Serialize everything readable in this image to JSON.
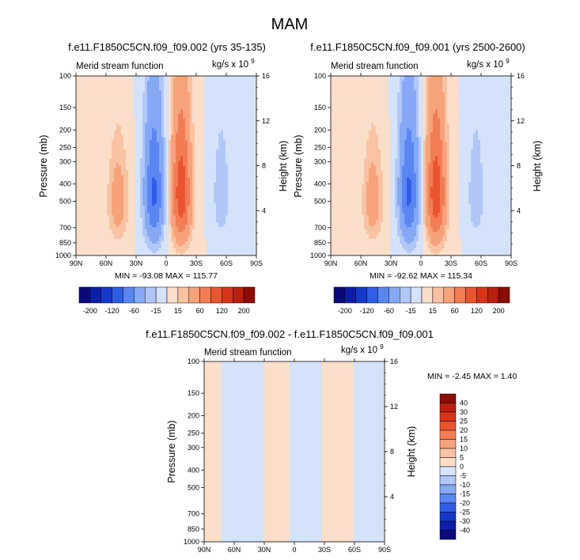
{
  "figure": {
    "title": "MAM"
  },
  "chart_data": [
    {
      "type": "heatmap",
      "title": "f.e11.F1850C5CN.f09_f09.002 (yrs 35-135)",
      "left_label": "Merid stream function",
      "right_label": "kg/s x 10",
      "right_label_exp": "9",
      "ylabel": "Pressure (mb)",
      "y2label": "Height (km)",
      "x_ticks": [
        "90N",
        "60N",
        "30N",
        "0",
        "30S",
        "60S",
        "90S"
      ],
      "y_ticks": [
        "100",
        "150",
        "200",
        "250",
        "300",
        "400",
        "500",
        "700",
        "850",
        "1000"
      ],
      "y2_ticks": [
        "16",
        "12",
        "8",
        "4"
      ],
      "stats": "MIN = -93.08   MAX = 115.77",
      "min": -93.08,
      "max": 115.77,
      "cells": [
        {
          "lat": -15,
          "p": 450,
          "sign": 1,
          "amp": 110,
          "dlat": 10,
          "dp": 380
        },
        {
          "lat": 12,
          "p": 450,
          "sign": -1,
          "amp": 95,
          "dlat": 10,
          "dp": 380
        },
        {
          "lat": 48,
          "p": 500,
          "sign": 1,
          "amp": 45,
          "dlat": 10,
          "dp": 300
        },
        {
          "lat": -55,
          "p": 450,
          "sign": -1,
          "amp": 30,
          "dlat": 8,
          "dp": 300
        }
      ]
    },
    {
      "type": "heatmap",
      "title": "f.e11.F1850C5CN.f09_f09.001 (yrs 2500-2600)",
      "left_label": "Merid stream function",
      "right_label": "kg/s x 10",
      "right_label_exp": "9",
      "ylabel": "Pressure (mb)",
      "y2label": "Height (km)",
      "x_ticks": [
        "90N",
        "60N",
        "30N",
        "0",
        "30S",
        "60S",
        "90S"
      ],
      "y_ticks": [
        "100",
        "150",
        "200",
        "250",
        "300",
        "400",
        "500",
        "700",
        "850",
        "1000"
      ],
      "y2_ticks": [
        "16",
        "12",
        "8",
        "4"
      ],
      "stats": "MIN = -92.62   MAX = 115.34",
      "min": -92.62,
      "max": 115.34,
      "cells": [
        {
          "lat": -15,
          "p": 450,
          "sign": 1,
          "amp": 110,
          "dlat": 10,
          "dp": 380
        },
        {
          "lat": 12,
          "p": 450,
          "sign": -1,
          "amp": 95,
          "dlat": 10,
          "dp": 380
        },
        {
          "lat": 48,
          "p": 500,
          "sign": 1,
          "amp": 45,
          "dlat": 10,
          "dp": 300
        },
        {
          "lat": -55,
          "p": 450,
          "sign": -1,
          "amp": 30,
          "dlat": 8,
          "dp": 300
        }
      ]
    },
    {
      "type": "heatmap",
      "title": "f.e11.F1850C5CN.f09_f09.002 - f.e11.F1850C5CN.f09_f09.001",
      "left_label": "Merid stream function",
      "right_label": "kg/s x 10",
      "right_label_exp": "9",
      "ylabel": "Pressure (mb)",
      "y2label": "Height (km)",
      "x_ticks": [
        "90N",
        "60N",
        "30N",
        "0",
        "30S",
        "60S",
        "90S"
      ],
      "y_ticks": [
        "100",
        "150",
        "200",
        "250",
        "300",
        "400",
        "500",
        "700",
        "850",
        "1000"
      ],
      "y2_ticks": [
        "16",
        "12",
        "8",
        "4"
      ],
      "stats": "MIN =  -2.45   MAX =   1.40",
      "min": -2.45,
      "max": 1.4,
      "bands": [
        {
          "from": 90,
          "to": 73,
          "sign": 1
        },
        {
          "from": 73,
          "to": 30,
          "sign": -1
        },
        {
          "from": 30,
          "to": 5,
          "sign": 1
        },
        {
          "from": 5,
          "to": -27,
          "sign": -1
        },
        {
          "from": -27,
          "to": -59,
          "sign": 1
        },
        {
          "from": -59,
          "to": -90,
          "sign": -1
        }
      ]
    }
  ],
  "colorbar_main": {
    "levels": [
      "-200",
      "-120",
      "-60",
      "-15",
      "15",
      "60",
      "120",
      "200"
    ],
    "colors": [
      "#0a0a7a",
      "#0d1ea6",
      "#1538cc",
      "#2f5ee6",
      "#5a86f2",
      "#86a9f5",
      "#b1c8f7",
      "#d5e3fa",
      "#fbdfcb",
      "#f8c3a3",
      "#f6a27b",
      "#f27d55",
      "#ea5530",
      "#d8341a",
      "#b82010",
      "#8a0d06"
    ]
  },
  "colorbar_diff": {
    "levels": [
      "40",
      "30",
      "25",
      "20",
      "15",
      "10",
      "5",
      "0",
      "-5",
      "-10",
      "-15",
      "-20",
      "-25",
      "-30",
      "-40"
    ],
    "colors": [
      "#8a0d06",
      "#b82010",
      "#d8341a",
      "#ea5530",
      "#f27d55",
      "#f6a27b",
      "#f8c3a3",
      "#fbdfcb",
      "#d5e3fa",
      "#b1c8f7",
      "#86a9f5",
      "#5a86f2",
      "#2f5ee6",
      "#1538cc",
      "#0d1ea6",
      "#0a0a7a"
    ]
  }
}
